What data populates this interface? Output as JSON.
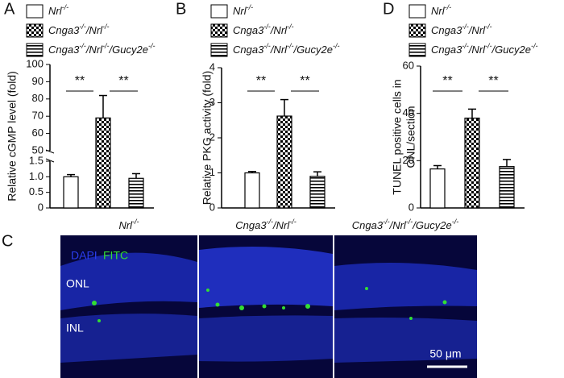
{
  "chart_data": [
    {
      "type": "bar",
      "panel": "A",
      "y_label": "Relative cGMP level (fold)",
      "categories": [
        [
          "Nrl",
          "-/-"
        ],
        [
          "Cnga3",
          "-/-",
          "/Nrl",
          "-/-"
        ],
        [
          "Cnga3",
          "-/-",
          "/Nrl",
          "-/-",
          "/Gucy2e",
          "-/-"
        ]
      ],
      "values": [
        1.0,
        69,
        0.95
      ],
      "errors": [
        0.07,
        13,
        0.15
      ],
      "ylim_lower": [
        0,
        1.5
      ],
      "yticks_lower": [
        0,
        0.5,
        {
          "value": 1.0,
          "label": "1.0"
        },
        1.5
      ],
      "ylim_upper": [
        50,
        100
      ],
      "yticks_upper": [
        50,
        60,
        70,
        80,
        90,
        100
      ],
      "annotations": [
        "**",
        "**"
      ]
    },
    {
      "type": "bar",
      "panel": "B",
      "y_label": "Relative PKG activity (fold)",
      "categories": [
        [
          "Nrl",
          "-/-"
        ],
        [
          "Cnga3",
          "-/-",
          "/Nrl",
          "-/-"
        ],
        [
          "Cnga3",
          "-/-",
          "/Nrl",
          "-/-",
          "/Gucy2e",
          "-/-"
        ]
      ],
      "values": [
        1.0,
        2.62,
        0.9
      ],
      "errors": [
        0.04,
        0.47,
        0.13
      ],
      "ylim": [
        0,
        4
      ],
      "yticks": [
        0,
        1,
        2,
        3,
        4
      ],
      "annotations": [
        "**",
        "**"
      ]
    },
    {
      "type": "bar",
      "panel": "D",
      "y_label": [
        "TUNEL positive cells in",
        "ONL/section"
      ],
      "categories": [
        [
          "Nrl",
          "-/-"
        ],
        [
          "Cnga3",
          "-/-",
          "/Nrl",
          "-/-"
        ],
        [
          "Cnga3",
          "-/-",
          "/Nrl",
          "-/-",
          "/Gucy2e",
          "-/-"
        ]
      ],
      "values": [
        16.5,
        38,
        17.5
      ],
      "errors": [
        1.4,
        3.8,
        3.0
      ],
      "ylim": [
        0,
        60
      ],
      "yticks": [
        0,
        20,
        40,
        60
      ],
      "annotations": [
        "**",
        "**"
      ]
    }
  ],
  "micrographs": {
    "panel": "C",
    "titles": [
      [
        "Nrl",
        "-/-"
      ],
      [
        "Cnga3",
        "-/-",
        "/Nrl",
        "-/-"
      ],
      [
        "Cnga3",
        "-/-",
        "/Nrl",
        "-/-",
        "/Gucy2e",
        "-/-"
      ]
    ],
    "stains": [
      "DAPI",
      "FITC"
    ],
    "layers": [
      "ONL",
      "INL"
    ],
    "scale_bar": "50 μm"
  }
}
